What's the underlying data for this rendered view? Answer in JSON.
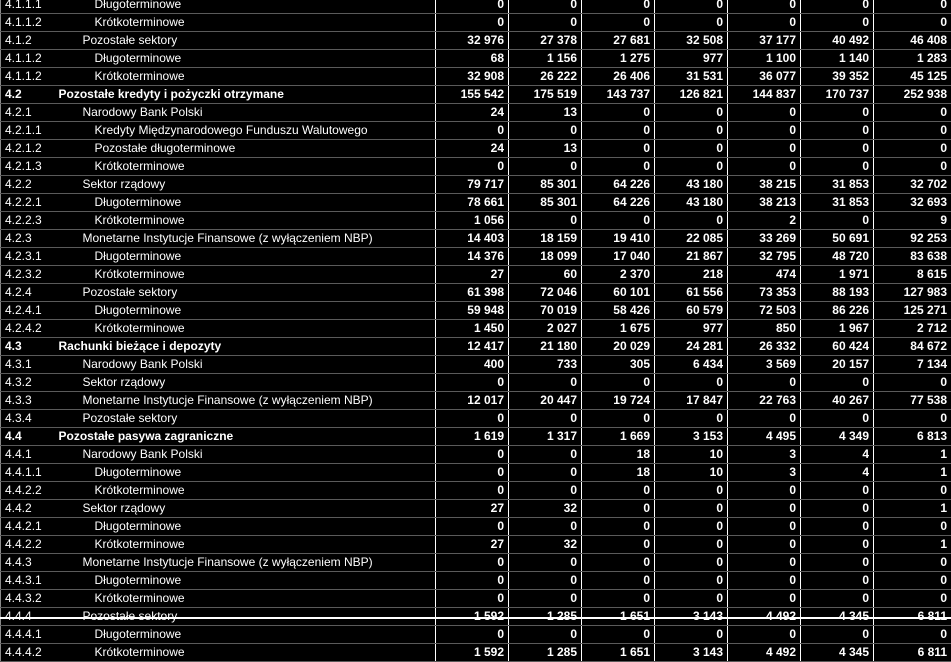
{
  "rows": [
    {
      "code": "4.1.1.1",
      "name": "Długoterminowe",
      "level": 3,
      "bold": false,
      "values": [
        "0",
        "0",
        "0",
        "0",
        "0",
        "0",
        "0"
      ]
    },
    {
      "code": "4.1.1.2",
      "name": "Krótkoterminowe",
      "level": 3,
      "bold": false,
      "values": [
        "0",
        "0",
        "0",
        "0",
        "0",
        "0",
        "0"
      ]
    },
    {
      "code": "4.1.2",
      "name": "Pozostałe sektory",
      "level": 2,
      "bold": false,
      "values": [
        "32 976",
        "27 378",
        "27 681",
        "32 508",
        "37 177",
        "40 492",
        "46 408"
      ]
    },
    {
      "code": "4.1.1.2",
      "name": "Długoterminowe",
      "level": 3,
      "bold": false,
      "values": [
        "68",
        "1 156",
        "1 275",
        "977",
        "1 100",
        "1 140",
        "1 283"
      ]
    },
    {
      "code": "4.1.1.2",
      "name": "Krótkoterminowe",
      "level": 3,
      "bold": false,
      "values": [
        "32 908",
        "26 222",
        "26 406",
        "31 531",
        "36 077",
        "39 352",
        "45 125"
      ]
    },
    {
      "code": "4.2",
      "name": "Pozostałe kredyty i pożyczki otrzymane",
      "level": 1,
      "bold": true,
      "values": [
        "155 542",
        "175 519",
        "143 737",
        "126 821",
        "144 837",
        "170 737",
        "252 938"
      ]
    },
    {
      "code": "4.2.1",
      "name": "Narodowy Bank Polski",
      "level": 2,
      "bold": false,
      "values": [
        "24",
        "13",
        "0",
        "0",
        "0",
        "0",
        "0"
      ]
    },
    {
      "code": "4.2.1.1",
      "name": "Kredyty Międzynarodowego Funduszu Walutowego",
      "level": 3,
      "bold": false,
      "values": [
        "0",
        "0",
        "0",
        "0",
        "0",
        "0",
        "0"
      ]
    },
    {
      "code": "4.2.1.2",
      "name": "Pozostałe długoterminowe",
      "level": 3,
      "bold": false,
      "values": [
        "24",
        "13",
        "0",
        "0",
        "0",
        "0",
        "0"
      ]
    },
    {
      "code": "4.2.1.3",
      "name": "Krótkoterminowe",
      "level": 3,
      "bold": false,
      "values": [
        "0",
        "0",
        "0",
        "0",
        "0",
        "0",
        "0"
      ]
    },
    {
      "code": "4.2.2",
      "name": "Sektor rządowy",
      "level": 2,
      "bold": false,
      "values": [
        "79 717",
        "85 301",
        "64 226",
        "43 180",
        "38 215",
        "31 853",
        "32 702"
      ]
    },
    {
      "code": "4.2.2.1",
      "name": "Długoterminowe",
      "level": 3,
      "bold": false,
      "values": [
        "78 661",
        "85 301",
        "64 226",
        "43 180",
        "38 213",
        "31 853",
        "32 693"
      ]
    },
    {
      "code": "4.2.2.3",
      "name": "Krótkoterminowe",
      "level": 3,
      "bold": false,
      "values": [
        "1 056",
        "0",
        "0",
        "0",
        "2",
        "0",
        "9"
      ]
    },
    {
      "code": "4.2.3",
      "name": "Monetarne Instytucje Finansowe (z wyłączeniem NBP)",
      "level": 2,
      "bold": false,
      "values": [
        "14 403",
        "18 159",
        "19 410",
        "22 085",
        "33 269",
        "50 691",
        "92 253"
      ]
    },
    {
      "code": "4.2.3.1",
      "name": "Długoterminowe",
      "level": 3,
      "bold": false,
      "values": [
        "14 376",
        "18 099",
        "17 040",
        "21 867",
        "32 795",
        "48 720",
        "83 638"
      ]
    },
    {
      "code": "4.2.3.2",
      "name": "Krótkoterminowe",
      "level": 3,
      "bold": false,
      "values": [
        "27",
        "60",
        "2 370",
        "218",
        "474",
        "1 971",
        "8 615"
      ]
    },
    {
      "code": "4.2.4",
      "name": "Pozostałe sektory",
      "level": 2,
      "bold": false,
      "values": [
        "61 398",
        "72 046",
        "60 101",
        "61 556",
        "73 353",
        "88 193",
        "127 983"
      ]
    },
    {
      "code": "4.2.4.1",
      "name": "Długoterminowe",
      "level": 3,
      "bold": false,
      "values": [
        "59 948",
        "70 019",
        "58 426",
        "60 579",
        "72 503",
        "86 226",
        "125 271"
      ]
    },
    {
      "code": "4.2.4.2",
      "name": "Krótkoterminowe",
      "level": 3,
      "bold": false,
      "values": [
        "1 450",
        "2 027",
        "1 675",
        "977",
        "850",
        "1 967",
        "2 712"
      ]
    },
    {
      "code": "4.3",
      "name": "Rachunki bieżące i depozyty",
      "level": 1,
      "bold": true,
      "values": [
        "12 417",
        "21 180",
        "20 029",
        "24 281",
        "26 332",
        "60 424",
        "84 672"
      ]
    },
    {
      "code": "4.3.1",
      "name": "Narodowy Bank Polski",
      "level": 2,
      "bold": false,
      "values": [
        "400",
        "733",
        "305",
        "6 434",
        "3 569",
        "20 157",
        "7 134"
      ]
    },
    {
      "code": "4.3.2",
      "name": "Sektor rządowy",
      "level": 2,
      "bold": false,
      "values": [
        "0",
        "0",
        "0",
        "0",
        "0",
        "0",
        "0"
      ]
    },
    {
      "code": "4.3.3",
      "name": "Monetarne Instytucje Finansowe (z wyłączeniem NBP)",
      "level": 2,
      "bold": false,
      "values": [
        "12 017",
        "20 447",
        "19 724",
        "17 847",
        "22 763",
        "40 267",
        "77 538"
      ]
    },
    {
      "code": "4.3.4",
      "name": "Pozostałe sektory",
      "level": 2,
      "bold": false,
      "values": [
        "0",
        "0",
        "0",
        "0",
        "0",
        "0",
        "0"
      ]
    },
    {
      "code": "4.4",
      "name": "Pozostałe pasywa zagraniczne",
      "level": 1,
      "bold": true,
      "values": [
        "1 619",
        "1 317",
        "1 669",
        "3 153",
        "4 495",
        "4 349",
        "6 813"
      ]
    },
    {
      "code": "4.4.1",
      "name": "Narodowy Bank Polski",
      "level": 2,
      "bold": false,
      "values": [
        "0",
        "0",
        "18",
        "10",
        "3",
        "4",
        "1"
      ]
    },
    {
      "code": "4.4.1.1",
      "name": "Długoterminowe",
      "level": 3,
      "bold": false,
      "values": [
        "0",
        "0",
        "18",
        "10",
        "3",
        "4",
        "1"
      ]
    },
    {
      "code": "4.4.2.2",
      "name": "Krótkoterminowe",
      "level": 3,
      "bold": false,
      "values": [
        "0",
        "0",
        "0",
        "0",
        "0",
        "0",
        "0"
      ]
    },
    {
      "code": "4.4.2",
      "name": "Sektor rządowy",
      "level": 2,
      "bold": false,
      "values": [
        "27",
        "32",
        "0",
        "0",
        "0",
        "0",
        "1"
      ]
    },
    {
      "code": "4.4.2.1",
      "name": "Długoterminowe",
      "level": 3,
      "bold": false,
      "values": [
        "0",
        "0",
        "0",
        "0",
        "0",
        "0",
        "0"
      ]
    },
    {
      "code": "4.4.2.2",
      "name": "Krótkoterminowe",
      "level": 3,
      "bold": false,
      "values": [
        "27",
        "32",
        "0",
        "0",
        "0",
        "0",
        "1"
      ]
    },
    {
      "code": "4.4.3",
      "name": "Monetarne Instytucje Finansowe (z wyłączeniem NBP)",
      "level": 2,
      "bold": false,
      "values": [
        "0",
        "0",
        "0",
        "0",
        "0",
        "0",
        "0"
      ]
    },
    {
      "code": "4.4.3.1",
      "name": "Długoterminowe",
      "level": 3,
      "bold": false,
      "values": [
        "0",
        "0",
        "0",
        "0",
        "0",
        "0",
        "0"
      ]
    },
    {
      "code": "4.4.3.2",
      "name": "Krótkoterminowe",
      "level": 3,
      "bold": false,
      "values": [
        "0",
        "0",
        "0",
        "0",
        "0",
        "0",
        "0"
      ]
    },
    {
      "code": "4.4.4",
      "name": "Pozostałe sektory",
      "level": 2,
      "bold": false,
      "values": [
        "1 592",
        "1 285",
        "1 651",
        "3 143",
        "4 492",
        "4 345",
        "6 811"
      ]
    },
    {
      "code": "4.4.4.1",
      "name": "Długoterminowe",
      "level": 3,
      "bold": false,
      "values": [
        "0",
        "0",
        "0",
        "0",
        "0",
        "0",
        "0"
      ]
    },
    {
      "code": "4.4.4.2",
      "name": "Krótkoterminowe",
      "level": 3,
      "bold": false,
      "values": [
        "1 592",
        "1 285",
        "1 651",
        "3 143",
        "4 492",
        "4 345",
        "6 811"
      ]
    }
  ]
}
